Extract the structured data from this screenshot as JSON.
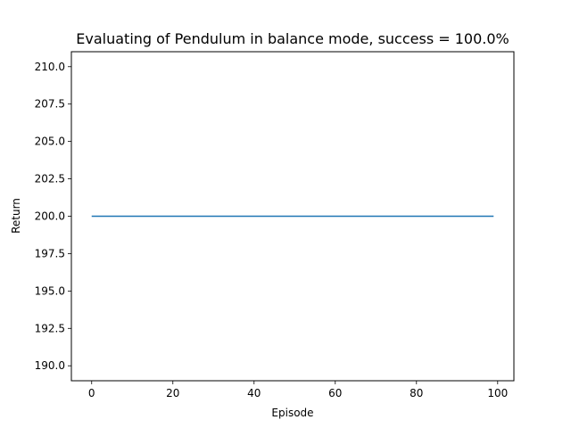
{
  "chart_data": {
    "type": "line",
    "title": "Evaluating of Pendulum in balance mode, success = 100.0%",
    "xlabel": "Episode",
    "ylabel": "Return",
    "xlim": [
      -5,
      104
    ],
    "ylim": [
      189,
      211
    ],
    "xticks": [
      0,
      20,
      40,
      60,
      80,
      100
    ],
    "xtick_labels": [
      "0",
      "20",
      "40",
      "60",
      "80",
      "100"
    ],
    "yticks": [
      190,
      192.5,
      195,
      197.5,
      200,
      202.5,
      205,
      207.5,
      210
    ],
    "ytick_labels": [
      "190.0",
      "192.5",
      "195.0",
      "197.5",
      "200.0",
      "202.5",
      "205.0",
      "207.5",
      "210.0"
    ],
    "grid": false,
    "series": [
      {
        "color": "#1f77b4",
        "x": [
          0,
          99
        ],
        "y": [
          200,
          200
        ]
      }
    ]
  }
}
